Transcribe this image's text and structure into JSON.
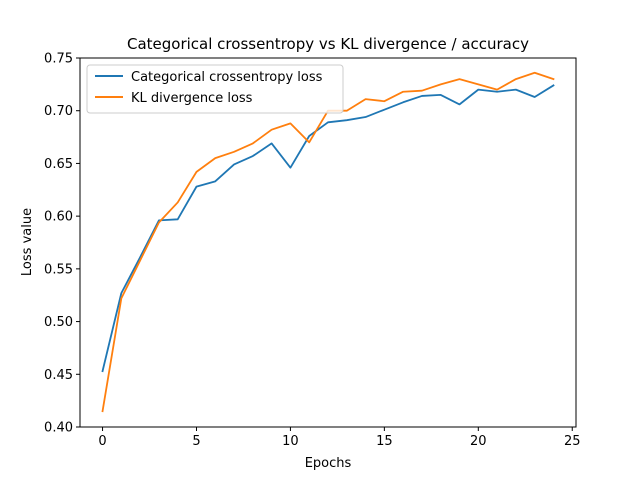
{
  "chart_data": {
    "type": "line",
    "title": "Categorical crossentropy vs KL divergence / accuracy",
    "xlabel": "Epochs",
    "ylabel": "Loss value",
    "xlim": [
      -1.2,
      25.2
    ],
    "ylim": [
      0.4,
      0.75
    ],
    "xticks": [
      0,
      5,
      10,
      15,
      20,
      25
    ],
    "xtick_labels": [
      "0",
      "5",
      "10",
      "15",
      "20",
      "25"
    ],
    "yticks": [
      0.4,
      0.45,
      0.5,
      0.55,
      0.6,
      0.65,
      0.7,
      0.75
    ],
    "ytick_labels": [
      "0.40",
      "0.45",
      "0.50",
      "0.55",
      "0.60",
      "0.65",
      "0.70",
      "0.75"
    ],
    "grid": false,
    "legend_position": "top-left",
    "x": [
      0,
      1,
      2,
      3,
      4,
      5,
      6,
      7,
      8,
      9,
      10,
      11,
      12,
      13,
      14,
      15,
      16,
      17,
      18,
      19,
      20,
      21,
      22,
      23,
      24
    ],
    "series": [
      {
        "name": "Categorical crossentropy loss",
        "color": "#1f77b4",
        "values": [
          0.453,
          0.527,
          0.561,
          0.596,
          0.597,
          0.628,
          0.633,
          0.649,
          0.657,
          0.669,
          0.646,
          0.676,
          0.689,
          0.691,
          0.694,
          0.701,
          0.708,
          0.714,
          0.715,
          0.706,
          0.72,
          0.718,
          0.72,
          0.713,
          0.724
        ]
      },
      {
        "name": "KL divergence loss",
        "color": "#ff7f0e",
        "values": [
          0.415,
          0.522,
          0.558,
          0.594,
          0.613,
          0.642,
          0.655,
          0.661,
          0.669,
          0.682,
          0.688,
          0.67,
          0.7,
          0.7,
          0.711,
          0.709,
          0.718,
          0.719,
          0.725,
          0.73,
          0.725,
          0.72,
          0.73,
          0.736,
          0.73
        ]
      }
    ]
  }
}
